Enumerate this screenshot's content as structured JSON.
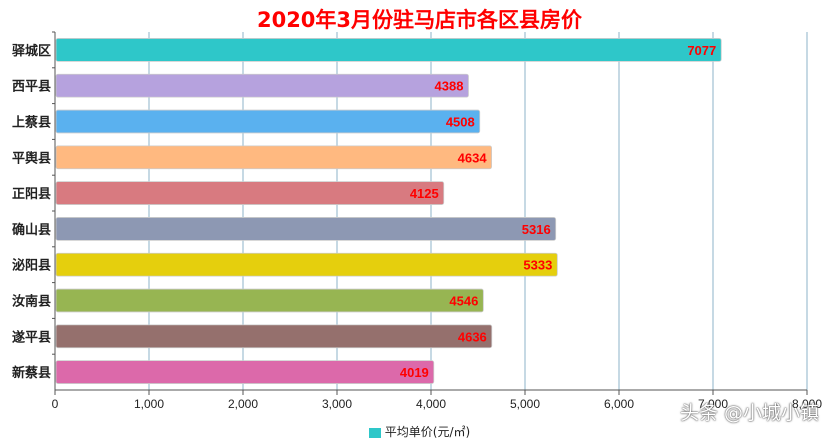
{
  "chart_data": {
    "type": "bar",
    "orientation": "horizontal",
    "title": "2020年3月份驻马店市各区县房价",
    "categories": [
      "驿城区",
      "西平县",
      "上蔡县",
      "平舆县",
      "正阳县",
      "确山县",
      "泌阳县",
      "汝南县",
      "遂平县",
      "新蔡县"
    ],
    "series": [
      {
        "name": "平均单价(元/㎡)",
        "values": [
          7077,
          4388,
          4508,
          4634,
          4125,
          5316,
          5333,
          4546,
          4636,
          4019
        ]
      }
    ],
    "bar_colors": [
      "#2ec7c9",
      "#b6a2de",
      "#5ab1ef",
      "#ffb980",
      "#d87a80",
      "#8d98b3",
      "#e5cf0d",
      "#97b552",
      "#95706d",
      "#dc69aa"
    ],
    "data_label_color": "#ff0000",
    "xlim": [
      0,
      8000
    ],
    "xticks": [
      "0",
      "1,000",
      "2,000",
      "3,000",
      "4,000",
      "5,000",
      "6,000",
      "7,000",
      "8,000"
    ],
    "grid": true,
    "legend_position": "bottom"
  },
  "watermark": "头条 @小城小镇"
}
